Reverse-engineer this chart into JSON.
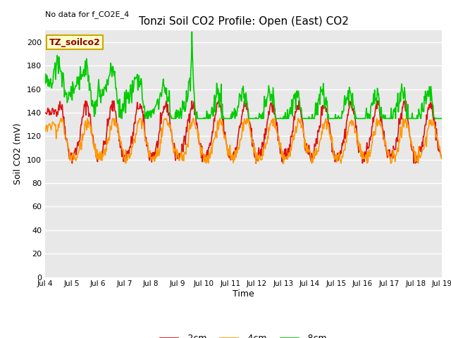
{
  "title": "Tonzi Soil CO2 Profile: Open (East) CO2",
  "no_data_text": "No data for f_CO2E_4",
  "xlabel": "Time",
  "ylabel": "Soil CO2 (mV)",
  "legend_label": "TZ_soilco2",
  "ylim": [
    0,
    210
  ],
  "yticks": [
    0,
    20,
    40,
    60,
    80,
    100,
    120,
    140,
    160,
    180,
    200
  ],
  "xtick_labels": [
    "Jul 4",
    "Jul 5",
    "Jul 6",
    "Jul 7",
    "Jul 8",
    "Jul 9",
    "Jul 10",
    "Jul 11",
    "Jul 12",
    "Jul 13",
    "Jul 14",
    "Jul 15",
    "Jul 16",
    "Jul 17",
    "Jul 18",
    "Jul 19"
  ],
  "line_colors": {
    "2cm": "#dd1111",
    "4cm": "#ff9900",
    "8cm": "#00cc00"
  },
  "bg_color": "#e8e8e8",
  "legend_bg": "#ffffcc",
  "legend_border": "#ccaa00",
  "line_width": 1.2,
  "n_points": 720,
  "seed": 42
}
